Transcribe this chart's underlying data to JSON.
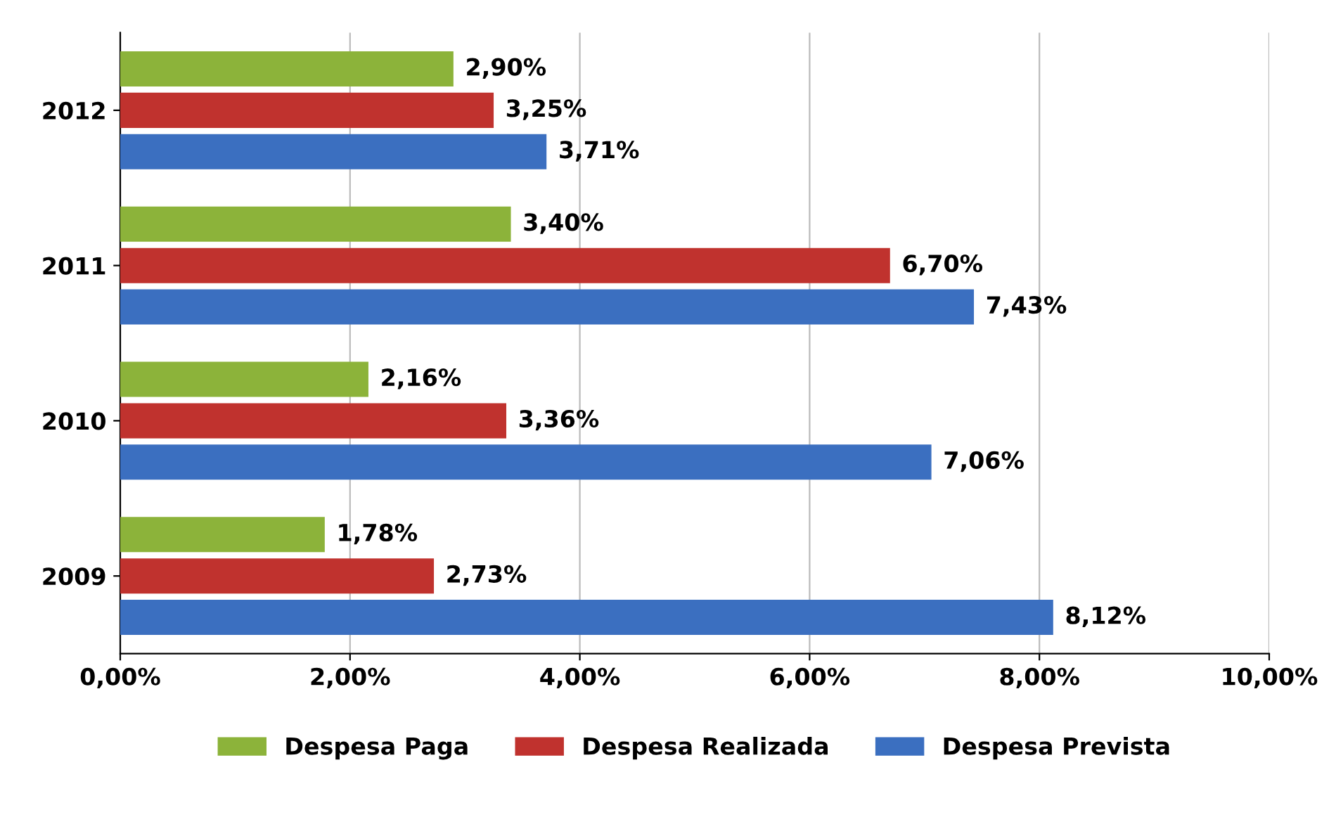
{
  "chart_data": {
    "type": "bar",
    "orientation": "horizontal",
    "categories": [
      "2012",
      "2011",
      "2010",
      "2009"
    ],
    "series": [
      {
        "name": "Despesa Paga",
        "color": "#8cb33a",
        "values": [
          2.9,
          3.4,
          2.16,
          1.78
        ],
        "value_labels": [
          "2,90%",
          "3,40%",
          "2,16%",
          "1,78%"
        ]
      },
      {
        "name": "Despesa Realizada",
        "color": "#c0322e",
        "values": [
          3.25,
          6.7,
          3.36,
          2.73
        ],
        "value_labels": [
          "3,25%",
          "6,70%",
          "3,36%",
          "2,73%"
        ]
      },
      {
        "name": "Despesa Prevista",
        "color": "#3b6fc0",
        "values": [
          3.71,
          7.43,
          7.06,
          8.12
        ],
        "value_labels": [
          "3,71%",
          "7,43%",
          "7,06%",
          "8,12%"
        ]
      }
    ],
    "xlim": [
      0,
      10
    ],
    "xticks": [
      {
        "value": 0,
        "label": "0,00%"
      },
      {
        "value": 2,
        "label": "2,00%"
      },
      {
        "value": 4,
        "label": "4,00%"
      },
      {
        "value": 6,
        "label": "6,00%"
      },
      {
        "value": 8,
        "label": "8,00%"
      },
      {
        "value": 10,
        "label": "10,00%"
      }
    ],
    "grid": "x",
    "legend": "bottom"
  }
}
